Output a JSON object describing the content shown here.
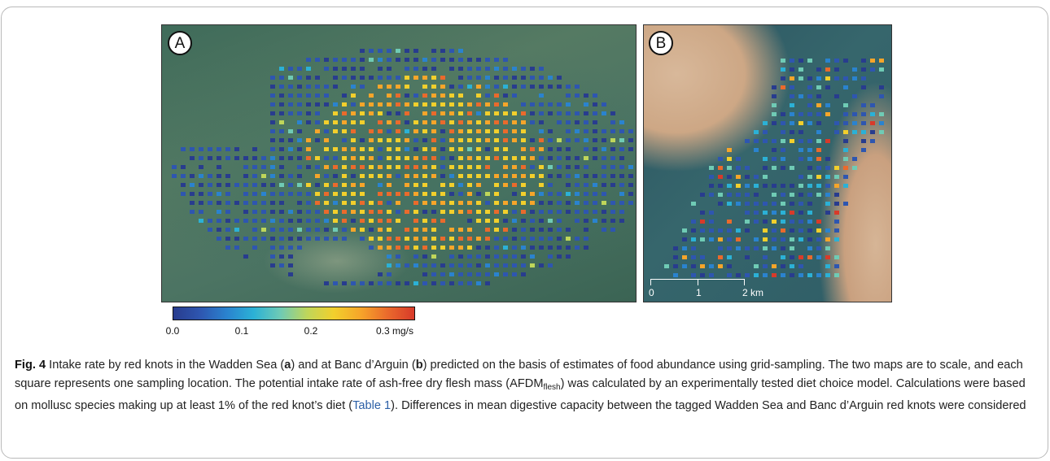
{
  "colors": {
    "colormap": [
      "#283c8e",
      "#2e56b0",
      "#2a83cf",
      "#2bb1d6",
      "#6fcbb5",
      "#bfd65a",
      "#f2cf2c",
      "#f6a52a",
      "#ea6a2c",
      "#d83a2a"
    ],
    "frame_border": "#b9b9b9"
  },
  "panels": {
    "a": {
      "label": "A"
    },
    "b": {
      "label": "B"
    }
  },
  "scalebar": {
    "ticks": [
      "0",
      "1",
      "2 km"
    ]
  },
  "colorbar": {
    "ticks": [
      "0.0",
      "0.1",
      "0.2",
      "0.3 mg/s"
    ],
    "values": [
      0.0,
      0.1,
      0.2,
      0.3
    ],
    "range": [
      0.0,
      0.35
    ]
  },
  "caption": {
    "fig_label": "Fig. 4",
    "p1": " Intake rate by red knots in the Wadden Sea (",
    "a_ref": "a",
    "p2": ") and at Banc d’Arguin (",
    "b_ref": "b",
    "p3": ") predicted on the basis of estimates of food abundance using grid-sampling. The two maps are to scale, and each square represents one sampling location. The potential intake rate of ash-free dry flesh mass (AFDM",
    "sub": "flesh",
    "p4": ") was calculated by an experimentally tested diet choice model. Calculations were based on mollusc species making up at least 1% of the red knot’s diet (",
    "table_ref": "Table 1",
    "p5": "). Differences in mean digestive capacity between the tagged Wadden Sea and Banc d’Arguin red knots were considered"
  }
}
